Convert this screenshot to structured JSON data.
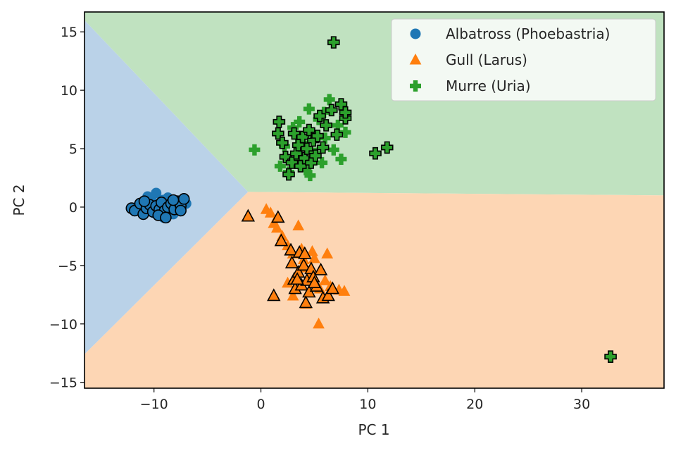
{
  "chart_data": {
    "type": "scatter",
    "title": "",
    "xlabel": "PC 1",
    "ylabel": "PC 2",
    "xlim": [
      -16.5,
      37.7
    ],
    "ylim": [
      -15.5,
      16.7
    ],
    "xticks": [
      -10,
      0,
      10,
      20,
      30
    ],
    "yticks": [
      -15,
      -10,
      -5,
      0,
      5,
      10,
      15
    ],
    "xtick_labels": [
      "−10",
      "0",
      "10",
      "20",
      "30"
    ],
    "ytick_labels": [
      "−15",
      "−10",
      "−5",
      "0",
      "5",
      "10",
      "15"
    ],
    "legend_position": "top-right",
    "regions": [
      {
        "class": "Albatross",
        "color": "#bad2e8",
        "polygon": [
          [
            -16.5,
            16.7
          ],
          [
            -16.5,
            -12.6
          ],
          [
            -1.2,
            1.3
          ],
          [
            -16.5,
            16.0
          ]
        ]
      },
      {
        "class": "Murre",
        "color": "#c0e2c0",
        "polygon": [
          [
            -16.5,
            16.0
          ],
          [
            -16.5,
            16.7
          ],
          [
            37.7,
            16.7
          ],
          [
            37.7,
            1.0
          ],
          [
            -1.2,
            1.3
          ]
        ]
      },
      {
        "class": "Gull",
        "color": "#fdd6b4",
        "polygon": [
          [
            -16.5,
            -12.6
          ],
          [
            -16.5,
            -15.5
          ],
          [
            37.7,
            -15.5
          ],
          [
            37.7,
            1.0
          ],
          [
            -1.2,
            1.3
          ]
        ]
      }
    ],
    "series": [
      {
        "name": "Albatross (Phoebastria)",
        "marker": "circle",
        "color": "#1f77b4",
        "train": [
          [
            -11.5,
            0.1
          ],
          [
            -11.0,
            -0.3
          ],
          [
            -10.8,
            0.4
          ],
          [
            -10.5,
            -0.2
          ],
          [
            -10.2,
            0.5
          ],
          [
            -10.0,
            -0.5
          ],
          [
            -9.8,
            1.2
          ],
          [
            -9.6,
            0.2
          ],
          [
            -9.4,
            -0.4
          ],
          [
            -9.2,
            0.6
          ],
          [
            -9.0,
            -0.8
          ],
          [
            -8.8,
            0.3
          ],
          [
            -8.6,
            -0.2
          ],
          [
            -8.4,
            0.5
          ],
          [
            -8.2,
            -0.6
          ],
          [
            -8.0,
            0.2
          ],
          [
            -7.8,
            -0.3
          ],
          [
            -7.6,
            0.4
          ],
          [
            -7.4,
            0.0
          ],
          [
            -7.0,
            0.3
          ],
          [
            -10.6,
            0.9
          ],
          [
            -9.1,
            -0.9
          ],
          [
            -8.7,
            0.8
          ]
        ],
        "test": [
          [
            -12.1,
            -0.1
          ],
          [
            -11.8,
            -0.3
          ],
          [
            -11.3,
            0.3
          ],
          [
            -11.0,
            -0.6
          ],
          [
            -10.7,
            -0.1
          ],
          [
            -10.4,
            0.2
          ],
          [
            -10.1,
            -0.4
          ],
          [
            -9.8,
            0.1
          ],
          [
            -9.5,
            -0.2
          ],
          [
            -9.3,
            0.4
          ],
          [
            -9.0,
            -0.3
          ],
          [
            -8.7,
            0.0
          ],
          [
            -8.4,
            0.3
          ],
          [
            -8.1,
            -0.2
          ],
          [
            -7.8,
            0.5
          ],
          [
            -7.5,
            0.1
          ],
          [
            -7.2,
            0.7
          ],
          [
            -9.6,
            -0.7
          ],
          [
            -8.9,
            -0.9
          ],
          [
            -10.9,
            0.5
          ],
          [
            -8.2,
            0.6
          ],
          [
            -7.5,
            -0.3
          ]
        ]
      },
      {
        "name": "Gull (Larus)",
        "marker": "triangle",
        "color": "#ff7f0e",
        "train": [
          [
            0.5,
            -0.2
          ],
          [
            0.9,
            -0.5
          ],
          [
            1.2,
            -1.4
          ],
          [
            1.5,
            -1.8
          ],
          [
            2.0,
            -2.5
          ],
          [
            2.5,
            -3.3
          ],
          [
            3.0,
            -4.0
          ],
          [
            3.5,
            -1.6
          ],
          [
            3.8,
            -3.6
          ],
          [
            4.0,
            -4.5
          ],
          [
            4.2,
            -5.2
          ],
          [
            4.5,
            -6.0
          ],
          [
            5.0,
            -4.4
          ],
          [
            5.5,
            -7.0
          ],
          [
            6.0,
            -6.3
          ],
          [
            6.5,
            -6.8
          ],
          [
            7.3,
            -7.1
          ],
          [
            7.8,
            -7.2
          ],
          [
            5.4,
            -10.0
          ],
          [
            4.2,
            -8.3
          ],
          [
            3.0,
            -7.6
          ],
          [
            2.5,
            -6.5
          ],
          [
            6.2,
            -4.0
          ],
          [
            4.8,
            -3.8
          ]
        ],
        "test": [
          [
            -1.2,
            -0.8
          ],
          [
            1.6,
            -0.9
          ],
          [
            1.9,
            -2.9
          ],
          [
            2.8,
            -3.7
          ],
          [
            2.9,
            -4.8
          ],
          [
            3.1,
            -6.2
          ],
          [
            3.2,
            -7.0
          ],
          [
            3.5,
            -5.6
          ],
          [
            3.6,
            -3.9
          ],
          [
            3.8,
            -6.7
          ],
          [
            4.0,
            -5.0
          ],
          [
            4.1,
            -4.0
          ],
          [
            4.3,
            -6.3
          ],
          [
            4.5,
            -7.3
          ],
          [
            4.7,
            -5.3
          ],
          [
            4.9,
            -6.0
          ],
          [
            5.2,
            -6.8
          ],
          [
            5.6,
            -5.4
          ],
          [
            5.8,
            -7.8
          ],
          [
            6.3,
            -7.6
          ],
          [
            6.7,
            -7.0
          ],
          [
            1.2,
            -7.6
          ],
          [
            4.2,
            -8.2
          ],
          [
            3.4,
            -6.2
          ],
          [
            5.0,
            -6.5
          ]
        ]
      },
      {
        "name": "Murre (Uria)",
        "marker": "plus",
        "color": "#2ca02c",
        "train": [
          [
            -0.6,
            4.9
          ],
          [
            1.8,
            3.5
          ],
          [
            2.2,
            5.2
          ],
          [
            2.6,
            3.0
          ],
          [
            3.0,
            6.8
          ],
          [
            3.3,
            4.1
          ],
          [
            3.6,
            7.3
          ],
          [
            3.9,
            5.5
          ],
          [
            4.2,
            3.2
          ],
          [
            4.5,
            8.4
          ],
          [
            4.8,
            6.2
          ],
          [
            5.1,
            4.6
          ],
          [
            5.4,
            7.5
          ],
          [
            5.7,
            3.8
          ],
          [
            6.0,
            5.9
          ],
          [
            6.4,
            9.2
          ],
          [
            6.8,
            4.9
          ],
          [
            7.2,
            7.0
          ],
          [
            7.5,
            4.1
          ],
          [
            7.9,
            6.4
          ],
          [
            4.6,
            2.7
          ],
          [
            5.9,
            8.1
          ],
          [
            3.4,
            6.0
          ]
        ],
        "test": [
          [
            1.6,
            6.3
          ],
          [
            1.7,
            7.3
          ],
          [
            2.0,
            5.5
          ],
          [
            2.3,
            4.3
          ],
          [
            2.6,
            2.8
          ],
          [
            2.9,
            3.8
          ],
          [
            3.1,
            6.3
          ],
          [
            3.3,
            4.6
          ],
          [
            3.5,
            5.3
          ],
          [
            3.7,
            3.5
          ],
          [
            3.9,
            6.0
          ],
          [
            4.1,
            4.2
          ],
          [
            4.3,
            5.0
          ],
          [
            4.5,
            6.6
          ],
          [
            4.7,
            3.8
          ],
          [
            4.9,
            5.7
          ],
          [
            5.1,
            4.4
          ],
          [
            5.3,
            6.1
          ],
          [
            5.5,
            7.8
          ],
          [
            5.8,
            5.1
          ],
          [
            6.1,
            7.0
          ],
          [
            6.6,
            8.3
          ],
          [
            7.1,
            6.2
          ],
          [
            7.5,
            8.8
          ],
          [
            7.9,
            7.6
          ],
          [
            7.9,
            8.1
          ],
          [
            6.8,
            14.1
          ],
          [
            10.7,
            4.6
          ],
          [
            11.8,
            5.1
          ],
          [
            32.7,
            -12.8
          ]
        ]
      }
    ]
  }
}
